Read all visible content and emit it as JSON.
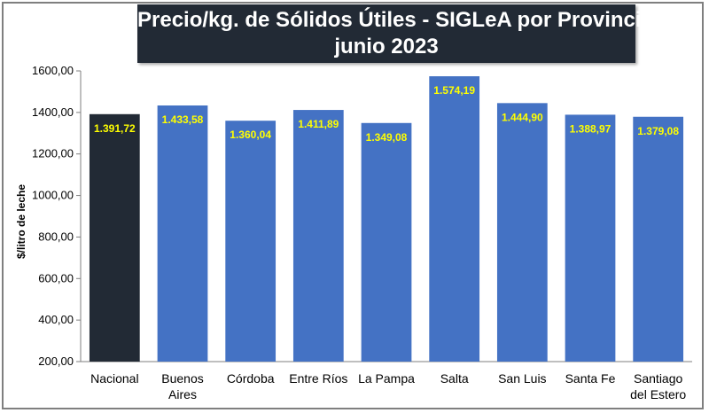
{
  "chart_data": {
    "type": "bar",
    "title_line1": "Precio/kg. de Sólidos Útiles - SIGLeA por Provincia:",
    "title_line2": "junio 2023",
    "ylabel": "$/litro de leche",
    "xlabel": "",
    "ylim": [
      200,
      1600
    ],
    "yticks": [
      200,
      400,
      600,
      800,
      1000,
      1200,
      1400,
      1600
    ],
    "ytick_labels": [
      "200,00",
      "400,00",
      "600,00",
      "800,00",
      "1000,00",
      "1200,00",
      "1400,00",
      "1600,00"
    ],
    "grid": false,
    "legend": "none",
    "categories": [
      [
        "Nacional"
      ],
      [
        "Buenos",
        "Aires"
      ],
      [
        "Córdoba"
      ],
      [
        "Entre Ríos"
      ],
      [
        "La Pampa"
      ],
      [
        "Salta"
      ],
      [
        "San Luis"
      ],
      [
        "Santa Fe"
      ],
      [
        "Santiago",
        "del Estero"
      ]
    ],
    "values": [
      1391.72,
      1433.58,
      1360.04,
      1411.89,
      1349.08,
      1574.19,
      1444.9,
      1388.97,
      1379.08
    ],
    "value_labels": [
      "1.391,72",
      "1.433,58",
      "1.360,04",
      "1.411,89",
      "1.349,08",
      "1.574,19",
      "1.444,90",
      "1.388,97",
      "1.379,08"
    ],
    "colors": [
      "#222a35",
      "#4472c4",
      "#4472c4",
      "#4472c4",
      "#4472c4",
      "#4472c4",
      "#4472c4",
      "#4472c4",
      "#4472c4"
    ],
    "label_color": "#ffff00"
  }
}
